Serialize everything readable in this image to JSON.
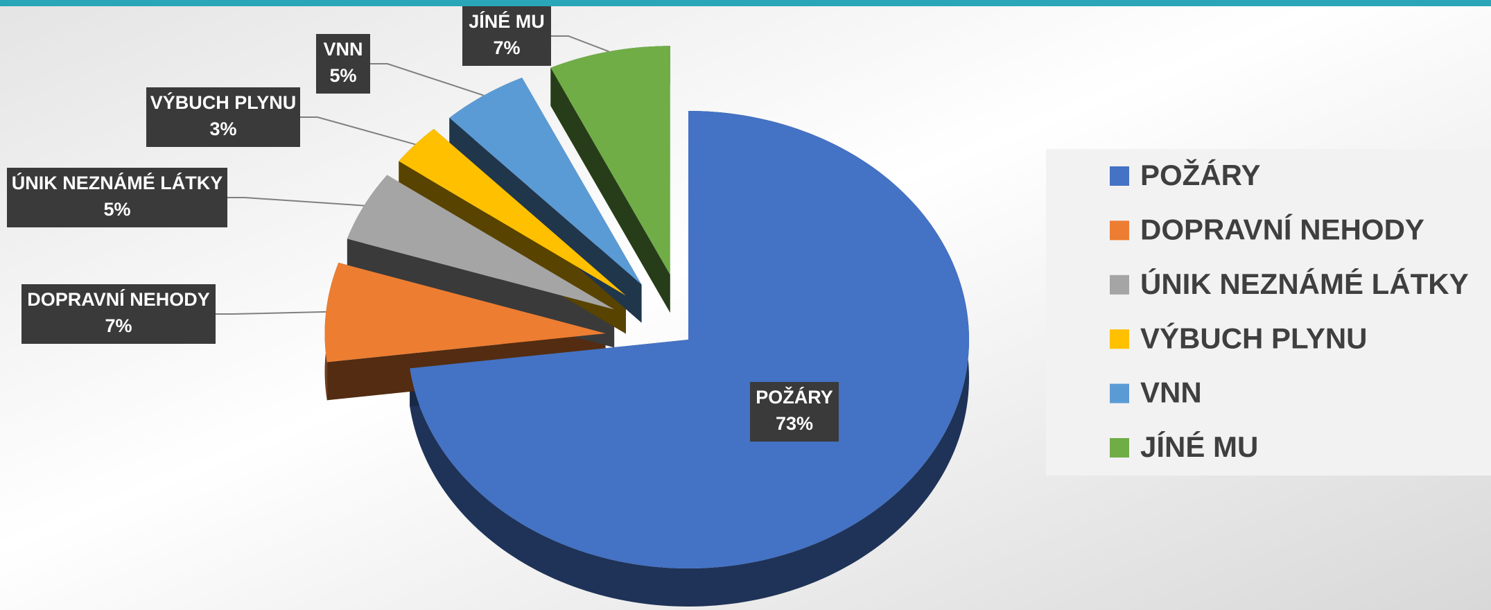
{
  "chart_data": {
    "type": "pie",
    "categories": [
      "POŽÁRY",
      "DOPRAVNÍ NEHODY",
      "ÚNIK NEZNÁMÉ LÁTKY",
      "VÝBUCH PLYNU",
      "VNN",
      "JÍNÉ MU"
    ],
    "values": [
      73,
      7,
      5,
      3,
      5,
      7
    ],
    "value_labels": [
      "73%",
      "7%",
      "5%",
      "3%",
      "5%",
      "7%"
    ],
    "colors": [
      "#4472c4",
      "#ed7d31",
      "#a5a5a5",
      "#ffc000",
      "#5b9bd5",
      "#70ad47"
    ],
    "legend": "right"
  }
}
